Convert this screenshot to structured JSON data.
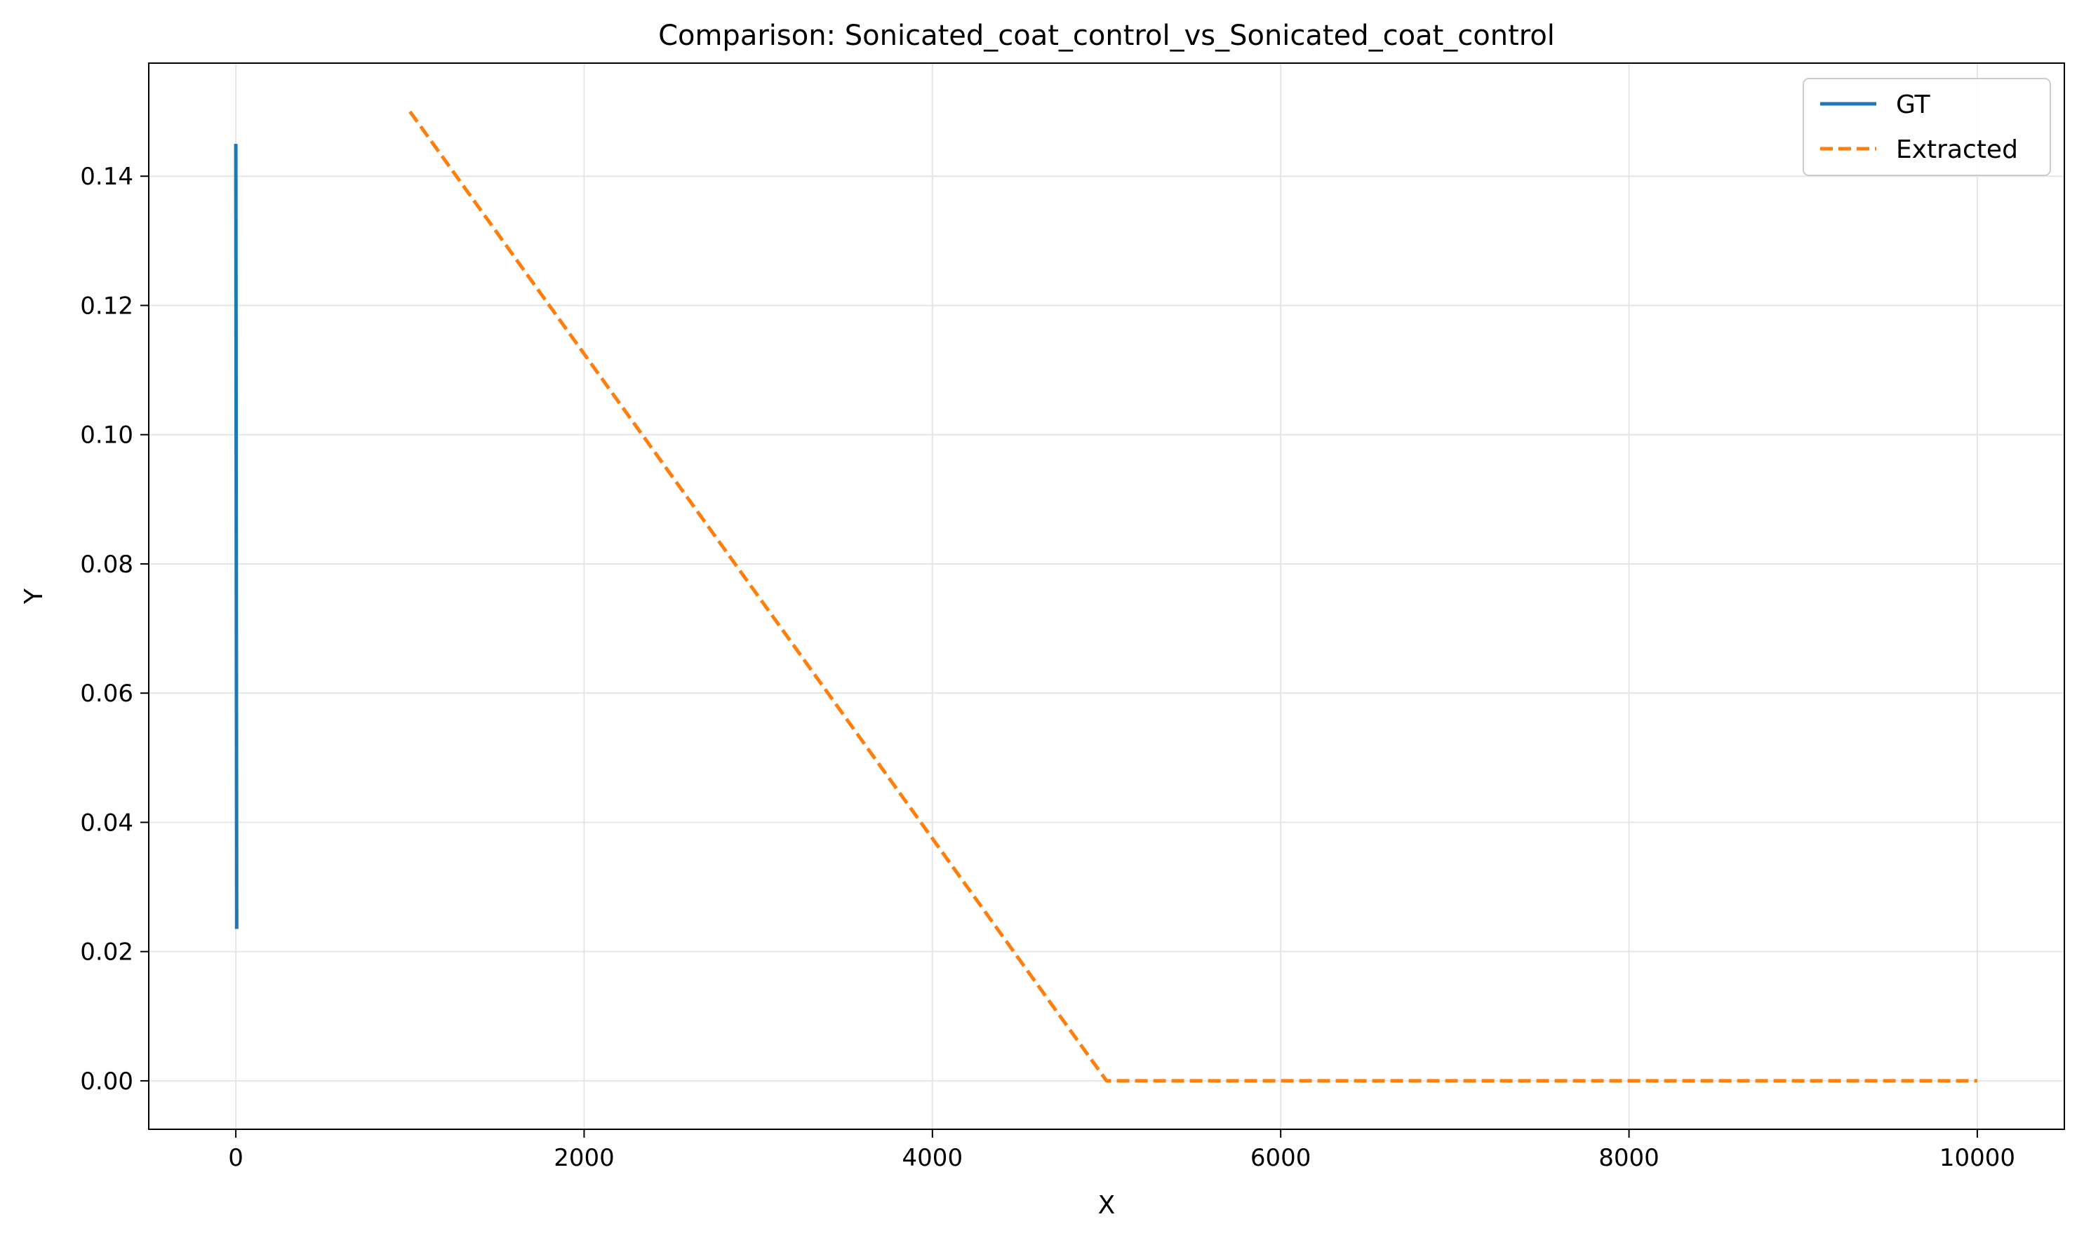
{
  "chart_data": {
    "type": "line",
    "title": "Comparison: Sonicated_coat_control_vs_Sonicated_coat_control",
    "xlabel": "X",
    "ylabel": "Y",
    "xlim": [
      -500,
      10500
    ],
    "ylim": [
      -0.0075,
      0.1575
    ],
    "xticks": [
      0,
      2000,
      4000,
      6000,
      8000,
      10000
    ],
    "xtick_labels": [
      "0",
      "2000",
      "4000",
      "6000",
      "8000",
      "10000"
    ],
    "yticks": [
      0.0,
      0.02,
      0.04,
      0.06,
      0.08,
      0.1,
      0.12,
      0.14
    ],
    "ytick_labels": [
      "0.00",
      "0.02",
      "0.04",
      "0.06",
      "0.08",
      "0.10",
      "0.12",
      "0.14"
    ],
    "grid": true,
    "legend_position": "top-right",
    "series": [
      {
        "name": "GT",
        "color": "#1f77b4",
        "style": "solid",
        "x": [
          0,
          5
        ],
        "y": [
          0.145,
          0.0235
        ]
      },
      {
        "name": "Extracted",
        "color": "#ff7f0e",
        "style": "dashed",
        "x": [
          1000,
          5000,
          10000
        ],
        "y": [
          0.15,
          0.0,
          0.0
        ]
      }
    ]
  }
}
